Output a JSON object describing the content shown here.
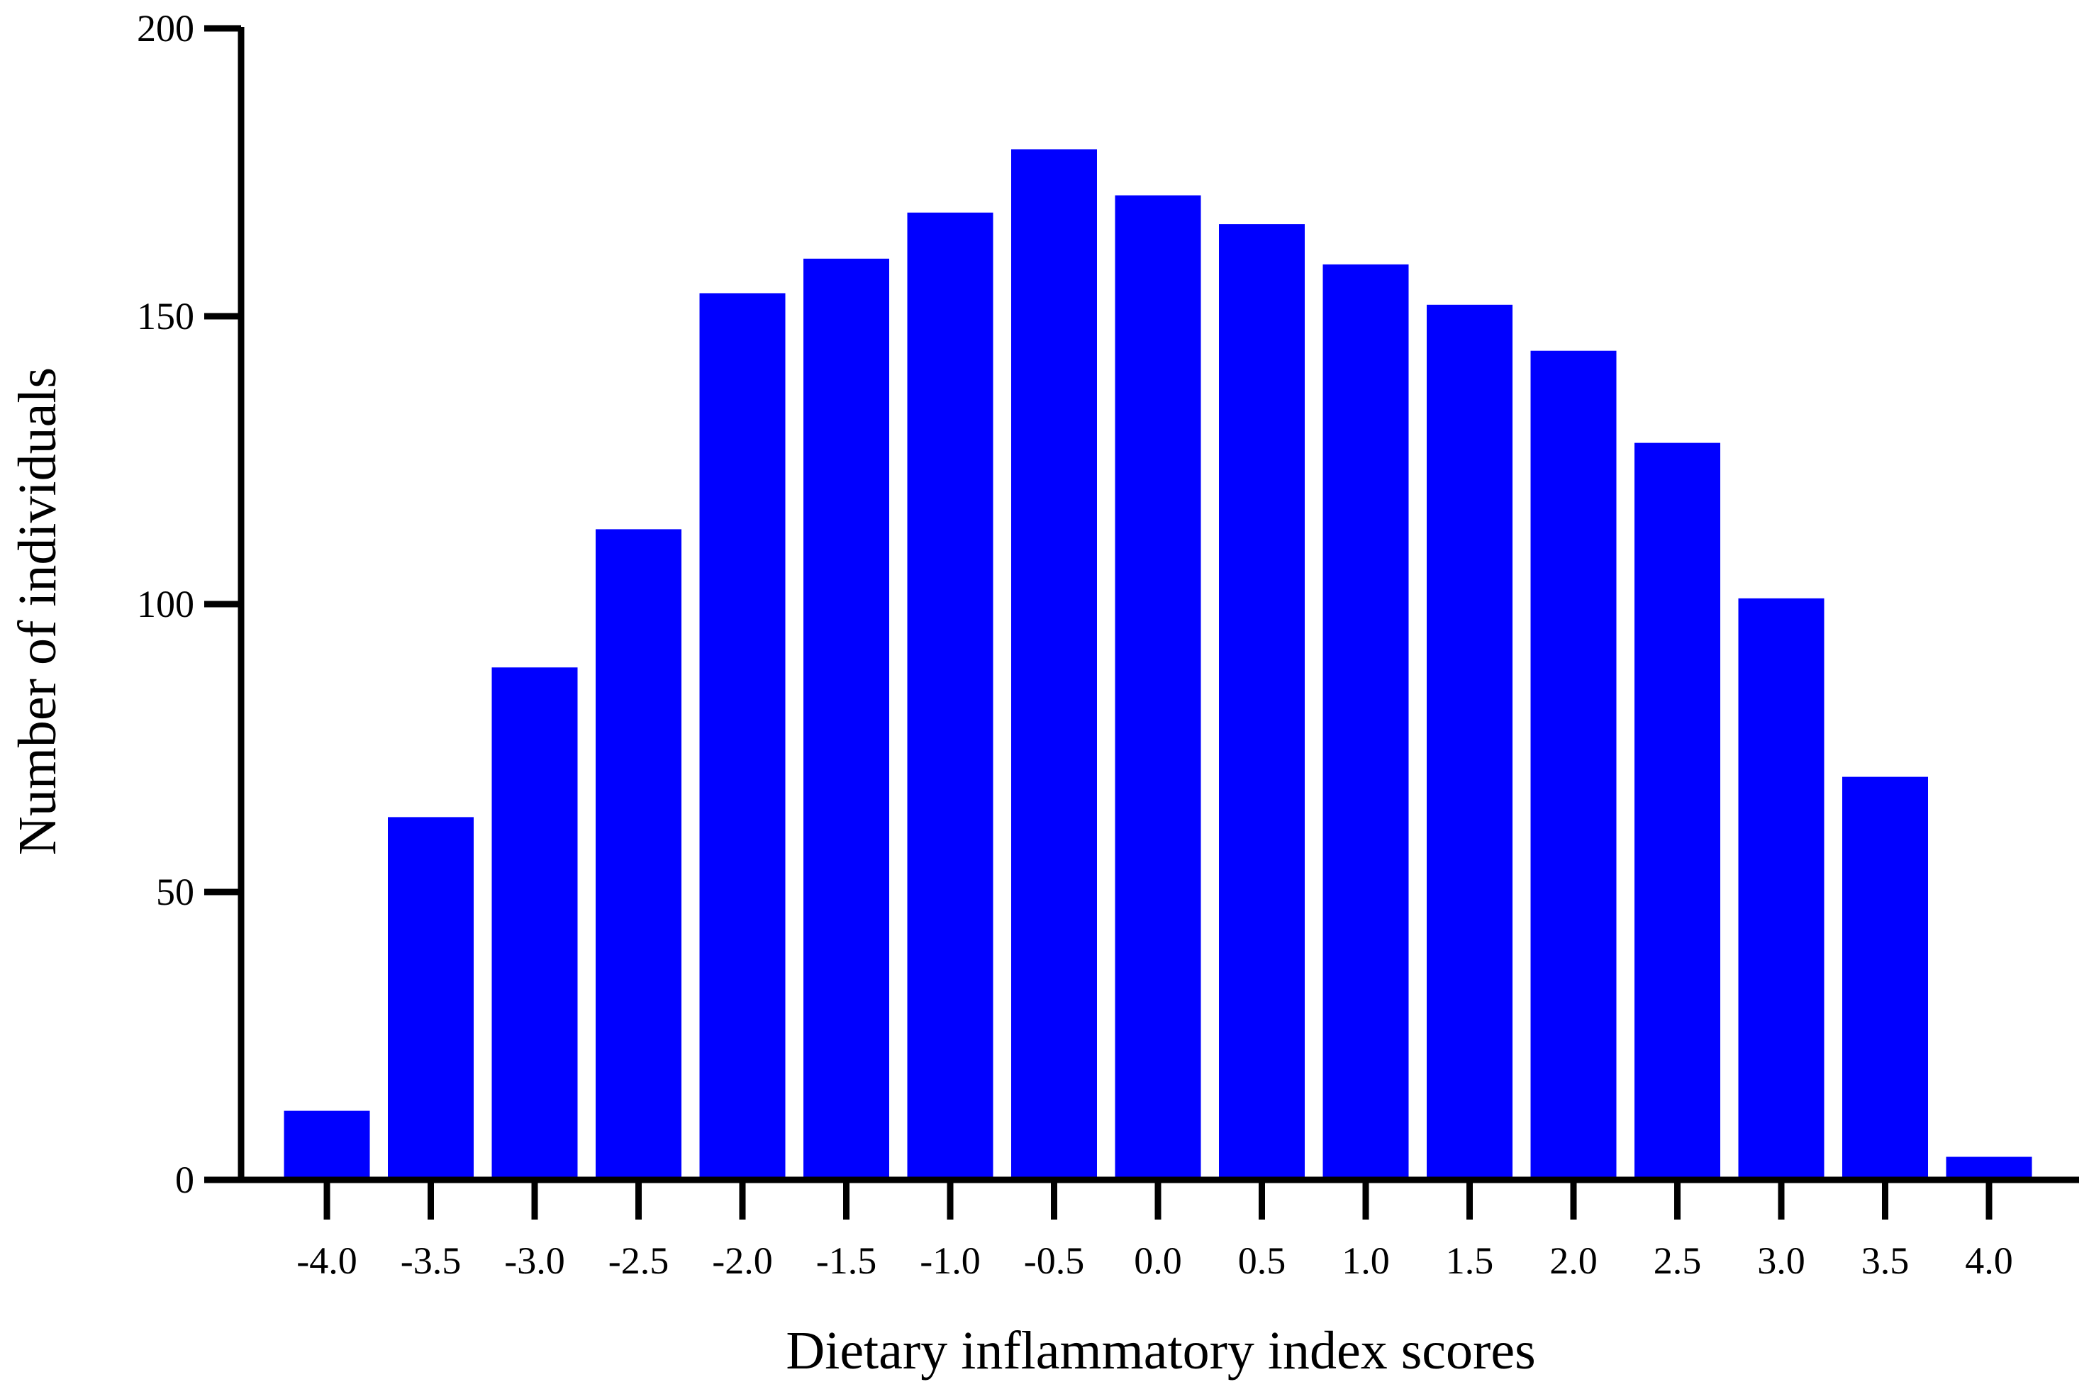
{
  "chart_data": {
    "type": "bar",
    "title": "",
    "xlabel": "Dietary inflammatory index scores",
    "ylabel": "Number of individuals",
    "categories": [
      "-4.0",
      "-3.5",
      "-3.0",
      "-2.5",
      "-2.0",
      "-1.5",
      "-1.0",
      "-0.5",
      "0.0",
      "0.5",
      "1.0",
      "1.5",
      "2.0",
      "2.5",
      "3.0",
      "3.5",
      "4.0"
    ],
    "values": [
      12,
      63,
      89,
      113,
      154,
      160,
      168,
      179,
      171,
      166,
      159,
      152,
      144,
      128,
      101,
      70,
      4
    ],
    "ylim": [
      0,
      200
    ],
    "yticks": [
      "0",
      "50",
      "100",
      "150",
      "200"
    ],
    "grid": false,
    "legend": "none",
    "bar_color": "#0000ff",
    "axis_color": "#000000"
  }
}
